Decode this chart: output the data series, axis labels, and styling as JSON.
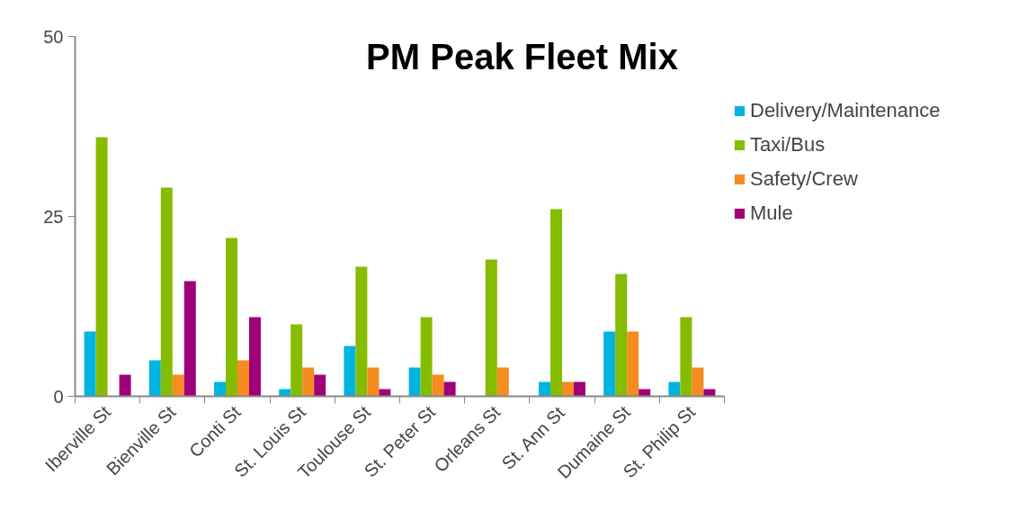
{
  "chart_data": {
    "type": "bar",
    "title": "PM Peak Fleet Mix",
    "categories": [
      "Iberville St",
      "Bienville St",
      "Conti St",
      "St. Louis St",
      "Toulouse St",
      "St. Peter St",
      "Orleans St",
      "St. Ann St",
      "Dumaine St",
      "St. Philip St"
    ],
    "series": [
      {
        "name": "Delivery/Maintenance",
        "color": "#00b4e0",
        "values": [
          9,
          5,
          2,
          1,
          7,
          4,
          0,
          2,
          9,
          2
        ]
      },
      {
        "name": "Taxi/Bus",
        "color": "#86bc00",
        "values": [
          36,
          29,
          22,
          10,
          18,
          11,
          19,
          26,
          17,
          11
        ]
      },
      {
        "name": "Safety/Crew",
        "color": "#f68b1f",
        "values": [
          0,
          3,
          5,
          4,
          4,
          3,
          4,
          2,
          9,
          4
        ]
      },
      {
        "name": "Mule",
        "color": "#9e0078",
        "values": [
          3,
          16,
          11,
          3,
          1,
          2,
          0,
          2,
          1,
          1
        ]
      }
    ],
    "ylim": [
      0,
      50
    ],
    "yticks": [
      0,
      25,
      50
    ],
    "grid": false,
    "legend": "right"
  }
}
